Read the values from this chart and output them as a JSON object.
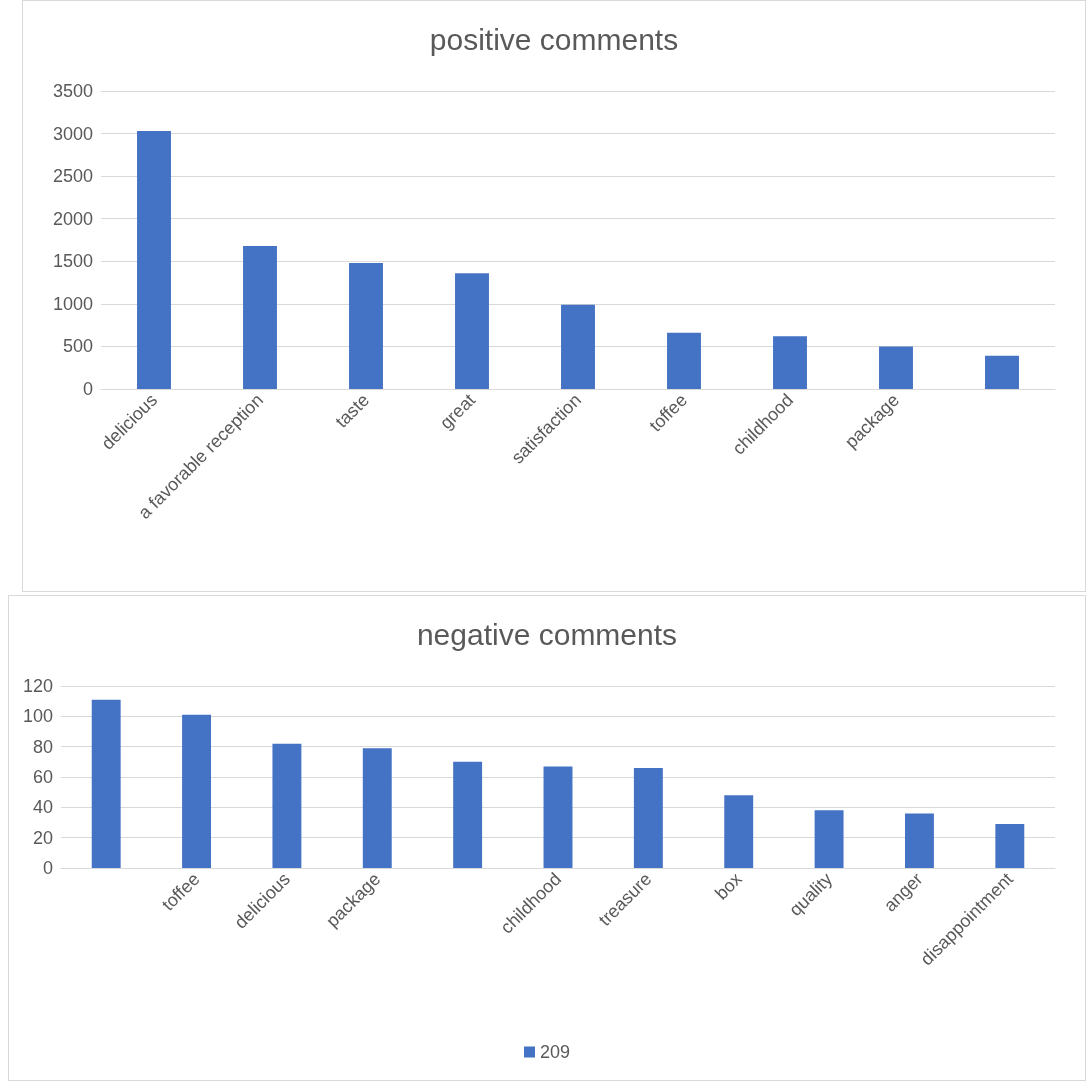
{
  "chart_data": [
    {
      "type": "bar",
      "title": "positive comments",
      "categories": [
        "delicious",
        "a favorable reception",
        "taste",
        "great",
        "satisfaction",
        "toffee",
        "childhood",
        "package",
        null
      ],
      "series": [
        {
          "color": "#4472c4",
          "values": [
            3030,
            1680,
            1480,
            1360,
            990,
            660,
            620,
            500,
            390
          ]
        }
      ],
      "ylim": [
        0,
        3500
      ],
      "yticks": [
        0,
        500,
        1000,
        1500,
        2000,
        2500,
        3000,
        3500
      ],
      "grid": "y",
      "legend": false
    },
    {
      "type": "bar",
      "title": "negative comments",
      "categories": [
        null,
        "toffee",
        "delicious",
        "package",
        null,
        "childhood",
        "treasure",
        "box",
        "quality",
        "anger",
        "disappointment"
      ],
      "series": [
        {
          "name": "209",
          "color": "#4472c4",
          "values": [
            111,
            101,
            82,
            79,
            70,
            67,
            66,
            48,
            38,
            36,
            29
          ]
        }
      ],
      "ylim": [
        0,
        120
      ],
      "yticks": [
        0,
        20,
        40,
        60,
        80,
        100,
        120
      ],
      "grid": "y",
      "legend": "bottom"
    }
  ]
}
